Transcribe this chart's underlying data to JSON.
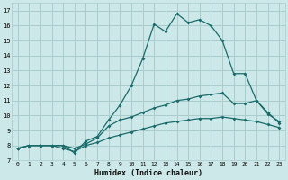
{
  "xlabel": "Humidex (Indice chaleur)",
  "bg_color": "#cce8e8",
  "grid_color": "#aacccc",
  "line_color": "#1a6b6b",
  "xlim": [
    -0.5,
    23.5
  ],
  "ylim": [
    7,
    17.5
  ],
  "xticks": [
    0,
    1,
    2,
    3,
    4,
    5,
    6,
    7,
    8,
    9,
    10,
    11,
    12,
    13,
    14,
    15,
    16,
    17,
    18,
    19,
    20,
    21,
    22,
    23
  ],
  "yticks": [
    7,
    8,
    9,
    10,
    11,
    12,
    13,
    14,
    15,
    16,
    17
  ],
  "line1_x": [
    0,
    1,
    2,
    3,
    4,
    5,
    6,
    7,
    8,
    9,
    10,
    11,
    12,
    13,
    14,
    15,
    16,
    17,
    18,
    19,
    20,
    21,
    22,
    23
  ],
  "line1_y": [
    7.8,
    8.0,
    8.0,
    8.0,
    8.0,
    7.5,
    8.3,
    8.6,
    9.7,
    10.7,
    12.0,
    13.8,
    16.1,
    15.6,
    16.8,
    16.2,
    16.4,
    16.0,
    15.0,
    12.8,
    12.8,
    11.0,
    10.2,
    9.5
  ],
  "line2_x": [
    0,
    1,
    2,
    3,
    4,
    5,
    6,
    7,
    8,
    9,
    10,
    11,
    12,
    13,
    14,
    15,
    16,
    17,
    18,
    19,
    20,
    21,
    22,
    23
  ],
  "line2_y": [
    7.8,
    8.0,
    8.0,
    8.0,
    8.0,
    7.8,
    8.1,
    8.5,
    9.3,
    9.7,
    9.9,
    10.2,
    10.5,
    10.7,
    11.0,
    11.1,
    11.3,
    11.4,
    11.5,
    10.8,
    10.8,
    11.0,
    10.1,
    9.6
  ],
  "line3_x": [
    0,
    1,
    2,
    3,
    4,
    5,
    6,
    7,
    8,
    9,
    10,
    11,
    12,
    13,
    14,
    15,
    16,
    17,
    18,
    19,
    20,
    21,
    22,
    23
  ],
  "line3_y": [
    7.8,
    8.0,
    8.0,
    8.0,
    7.8,
    7.6,
    8.0,
    8.2,
    8.5,
    8.7,
    8.9,
    9.1,
    9.3,
    9.5,
    9.6,
    9.7,
    9.8,
    9.8,
    9.9,
    9.8,
    9.7,
    9.6,
    9.4,
    9.2
  ]
}
